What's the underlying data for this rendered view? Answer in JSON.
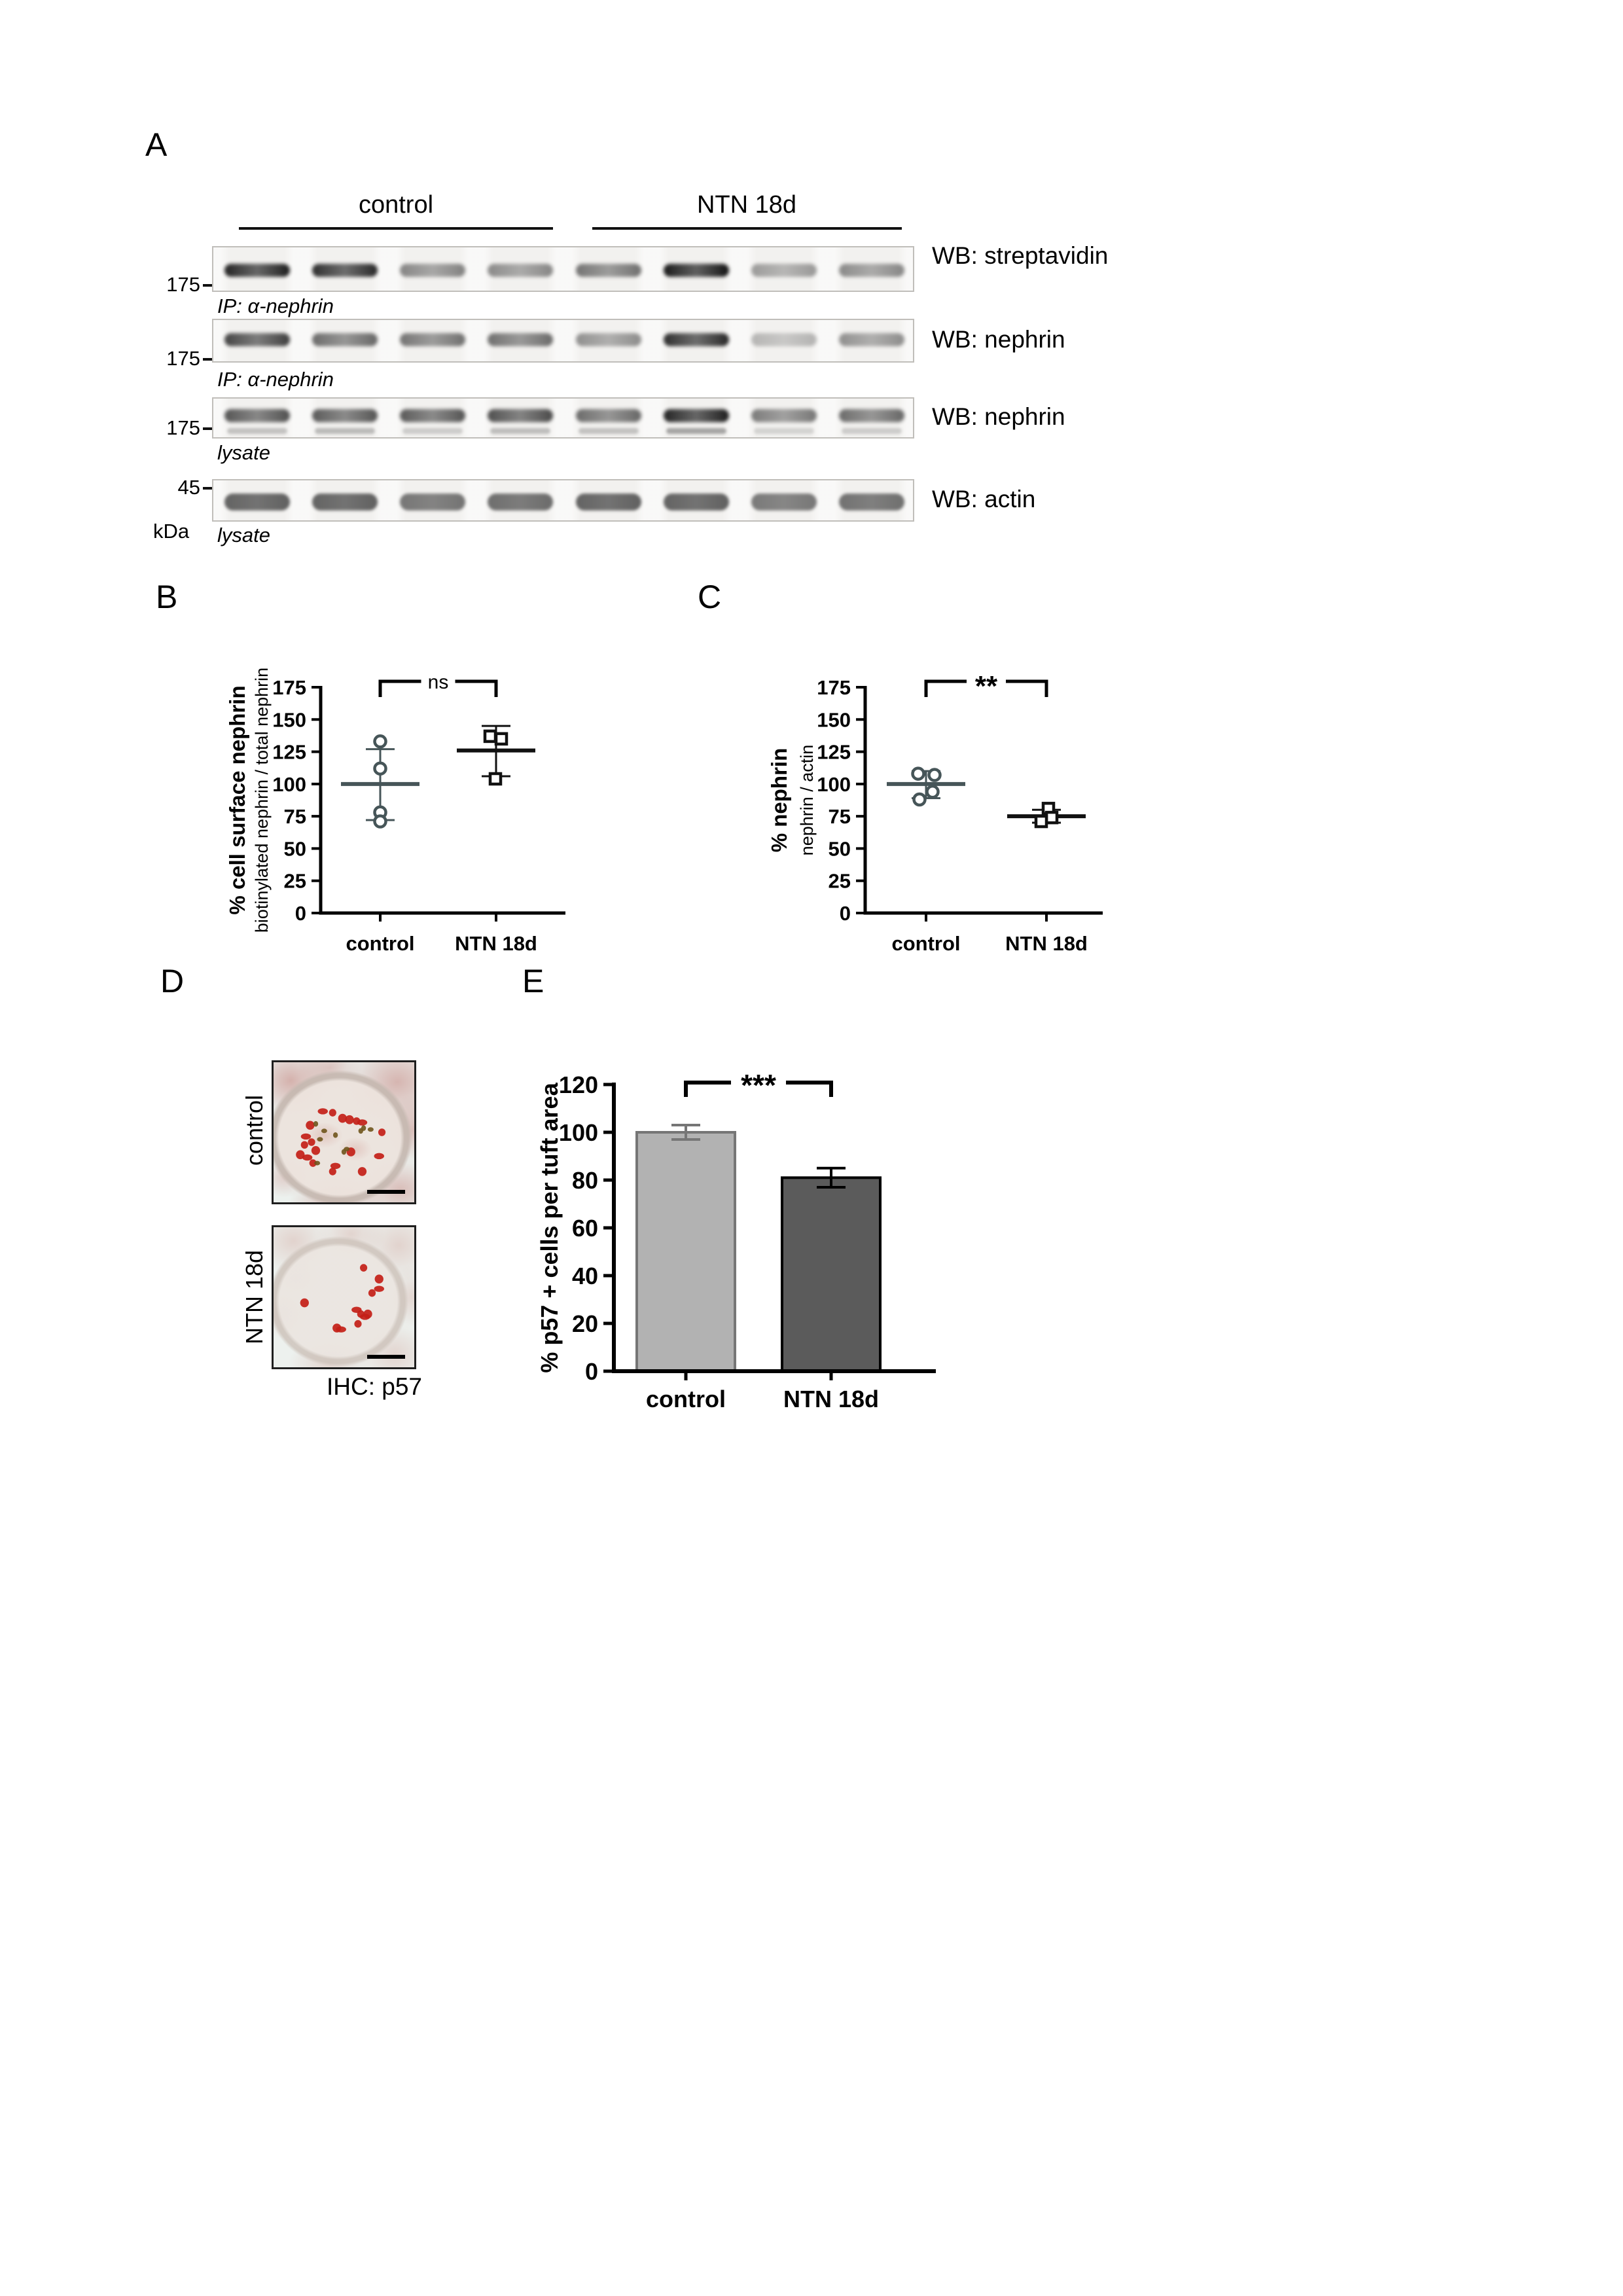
{
  "panel_labels": {
    "a": "A",
    "b": "B",
    "c": "C",
    "d": "D",
    "e": "E"
  },
  "panel_a": {
    "group_labels": [
      "control",
      "NTN 18d"
    ],
    "kda_label": "kDa",
    "blots": [
      {
        "wb_label": "WB: streptavidin",
        "marker": "175",
        "sub_label": "IP: α-nephrin",
        "bands": [
          0.95,
          0.9,
          0.5,
          0.48,
          0.58,
          1.0,
          0.4,
          0.48
        ]
      },
      {
        "wb_label": "WB: nephrin",
        "marker": "175",
        "sub_label": "IP: α-nephrin",
        "bands": [
          0.8,
          0.62,
          0.58,
          0.6,
          0.45,
          0.9,
          0.28,
          0.45
        ]
      },
      {
        "wb_label": "WB: nephrin",
        "marker": "175",
        "sub_label": "lysate",
        "bands": [
          0.72,
          0.7,
          0.7,
          0.75,
          0.62,
          0.95,
          0.55,
          0.62
        ],
        "bands2": [
          0.28,
          0.32,
          0.22,
          0.3,
          0.28,
          0.45,
          0.18,
          0.22
        ]
      },
      {
        "wb_label": "WB: actin",
        "marker": "45",
        "sub_label": "lysate",
        "thick": true,
        "bands": [
          0.78,
          0.78,
          0.68,
          0.72,
          0.78,
          0.78,
          0.66,
          0.7
        ]
      }
    ]
  },
  "chart_data": [
    {
      "id": "B",
      "type": "scatter",
      "ylabel_bold": "% cell surface nephrin",
      "ylabel_sub": "biotinylated nephrin / total nephrin",
      "ylim": [
        0,
        175
      ],
      "yticks": [
        0,
        25,
        50,
        75,
        100,
        125,
        150,
        175
      ],
      "categories": [
        "control",
        "NTN 18d"
      ],
      "significance": "ns",
      "series": [
        {
          "name": "control",
          "marker": "circle",
          "color": "#465558",
          "values": [
            133,
            112,
            78,
            71
          ],
          "x_jitter": [
            0,
            0,
            0,
            0
          ],
          "mean": 100,
          "err_low": 72,
          "err_high": 127
        },
        {
          "name": "NTN 18d",
          "marker": "square",
          "color": "#111111",
          "values": [
            137,
            135,
            104
          ],
          "x_jitter": [
            -9,
            8,
            -1
          ],
          "mean": 126,
          "err_low": 106,
          "err_high": 145
        }
      ]
    },
    {
      "id": "C",
      "type": "scatter",
      "ylabel_bold": "% nephrin",
      "ylabel_sub": "nephrin / actin",
      "ylim": [
        0,
        175
      ],
      "yticks": [
        0,
        25,
        50,
        75,
        100,
        125,
        150,
        175
      ],
      "categories": [
        "control",
        "NTN 18d"
      ],
      "significance": "**",
      "series": [
        {
          "name": "control",
          "marker": "circle",
          "color": "#465558",
          "values": [
            108,
            107,
            94,
            88
          ],
          "x_jitter": [
            -12,
            13,
            10,
            -10
          ],
          "mean": 100,
          "err_low": 89,
          "err_high": 110
        },
        {
          "name": "NTN 18d",
          "marker": "square",
          "color": "#111111",
          "values": [
            81,
            74,
            71
          ],
          "x_jitter": [
            3,
            8,
            -8
          ],
          "mean": 75,
          "err_low": 70,
          "err_high": 80
        }
      ]
    },
    {
      "id": "E",
      "type": "bar",
      "ylabel": "% p57 + cells per tuft area",
      "ylim": [
        0,
        120
      ],
      "yticks": [
        0,
        20,
        40,
        60,
        80,
        100,
        120
      ],
      "categories": [
        "control",
        "NTN 18d"
      ],
      "significance": "***",
      "values": [
        100,
        81
      ],
      "errors": [
        3,
        4
      ],
      "bar_colors": [
        "#b2b2b2",
        "#5b5b5b"
      ],
      "bar_border_colors": [
        "#767676",
        "#000000"
      ]
    }
  ],
  "panel_d": {
    "row_labels": [
      "control",
      "NTN 18d"
    ],
    "caption": "IHC: p57",
    "stain_colors": {
      "red": "#c32017",
      "brown": "#6f541c"
    },
    "images": [
      {
        "red_dots": [
          [
            42,
            36
          ],
          [
            54,
            41
          ],
          [
            63,
            43
          ],
          [
            77,
            50
          ],
          [
            26,
            45
          ],
          [
            23,
            53
          ],
          [
            22,
            59
          ],
          [
            19,
            66
          ],
          [
            24,
            68
          ],
          [
            28,
            72
          ],
          [
            55,
            64
          ],
          [
            75,
            67
          ],
          [
            42,
            78
          ],
          [
            63,
            78
          ],
          [
            35,
            35
          ],
          [
            59,
            42
          ],
          [
            30,
            63
          ],
          [
            44,
            74
          ],
          [
            27,
            57
          ],
          [
            49,
            40
          ]
        ],
        "brown_dots": [
          [
            30,
            44
          ],
          [
            36,
            49
          ],
          [
            44,
            52
          ],
          [
            33,
            55
          ],
          [
            50,
            64
          ],
          [
            31,
            72
          ],
          [
            64,
            47
          ],
          [
            69,
            48
          ],
          [
            62,
            49
          ],
          [
            52,
            62
          ]
        ]
      },
      {
        "red_dots": [
          [
            64,
            29
          ],
          [
            75,
            37
          ],
          [
            75,
            44
          ],
          [
            70,
            47
          ],
          [
            22,
            54
          ],
          [
            59,
            59
          ],
          [
            62,
            62
          ],
          [
            67,
            62
          ],
          [
            65,
            64
          ],
          [
            60,
            69
          ],
          [
            45,
            72
          ],
          [
            48,
            73
          ]
        ],
        "brown_dots": []
      }
    ]
  }
}
